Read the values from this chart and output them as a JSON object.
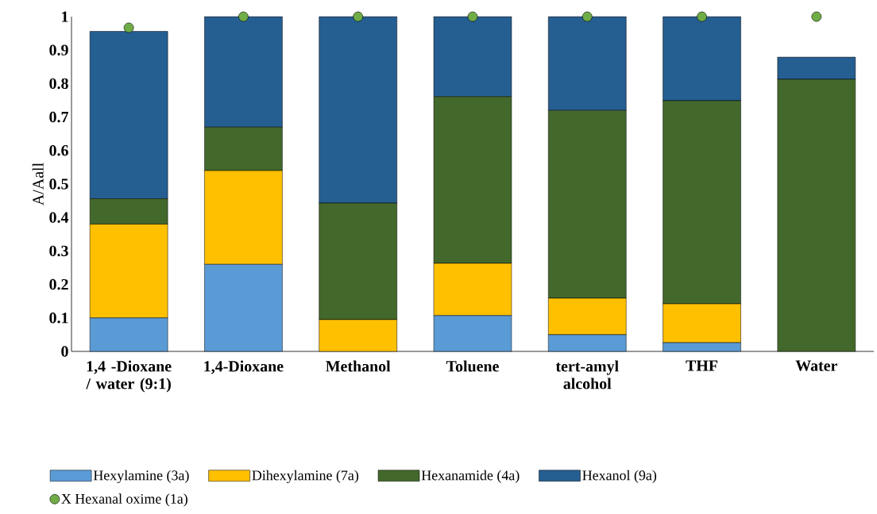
{
  "chart_data": {
    "type": "bar",
    "stacked": true,
    "ylabel": "A/Aall",
    "ylim": [
      0,
      1
    ],
    "yticks": [
      0,
      0.1,
      0.2,
      0.3,
      0.4,
      0.5,
      0.6,
      0.7,
      0.8,
      0.9,
      1
    ],
    "grid": false,
    "legend": "bottom",
    "categories": [
      "1,4 -Dioxane / water (9:1)",
      "1,4-Dioxane",
      "Methanol",
      "Toluene",
      "tert-amyl alcohol",
      "THF",
      "Water"
    ],
    "series": [
      {
        "name": "Hexylamine (3a)",
        "color": "#5b9bd5",
        "values": [
          0.1,
          0.26,
          0,
          0.107,
          0.05,
          0.026,
          0
        ]
      },
      {
        "name": "Dihexylamine (7a)",
        "color": "#ffc000",
        "values": [
          0.28,
          0.28,
          0.095,
          0.156,
          0.109,
          0.116,
          0
        ]
      },
      {
        "name": "Hexanamide (4a)",
        "color": "#43682b",
        "values": [
          0.076,
          0.13,
          0.348,
          0.498,
          0.561,
          0.607,
          0.813
        ]
      },
      {
        "name": "Hexanol (9a)",
        "color": "#255e91",
        "values": [
          0.5,
          0.33,
          0.557,
          0.239,
          0.28,
          0.251,
          0.066
        ]
      },
      {
        "name": "X Hexanal oxime (1a)",
        "type": "scatter",
        "color": "#70ad47",
        "values": [
          0.967,
          1,
          1,
          1,
          1,
          1,
          1
        ]
      }
    ]
  }
}
